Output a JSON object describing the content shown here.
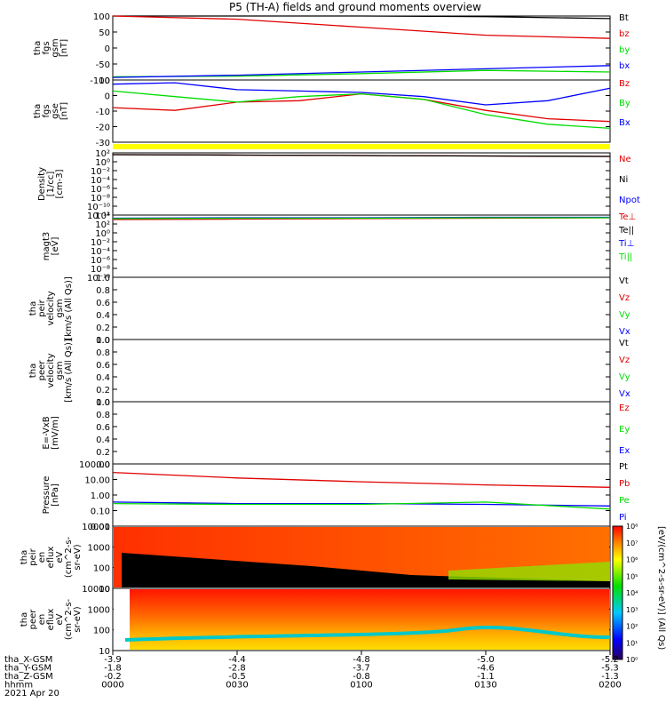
{
  "title": "P5 (TH-A) fields and ground moments overview",
  "colors": {
    "black": "#000000",
    "red": "#e00000",
    "green": "#00dd00",
    "blue": "#0000ff",
    "yellow": "#ffff00"
  },
  "panels": [
    {
      "id": "fgs_gsm",
      "ylabel": [
        "tha",
        "fgs",
        "gsm",
        "[nT]"
      ],
      "ticks": [
        "100",
        "50",
        "0",
        "-50",
        "-100"
      ],
      "legend": [
        {
          "label": "Bt",
          "color": "black"
        },
        {
          "label": "bz",
          "color": "red"
        },
        {
          "label": "by",
          "color": "green"
        },
        {
          "label": "bx",
          "color": "blue"
        }
      ]
    },
    {
      "id": "fgs_gse",
      "ylabel": [
        "tha",
        "fgs",
        "gse",
        "[nT]"
      ],
      "ticks": [
        "10",
        "0",
        "-10",
        "-20",
        "-30"
      ],
      "legend": [
        {
          "label": "Bz",
          "color": "red"
        },
        {
          "label": "By",
          "color": "green"
        },
        {
          "label": "Bx",
          "color": "blue"
        }
      ]
    },
    {
      "id": "density",
      "ylabel": [
        "Density",
        "[1/cc]",
        "[cm-3]"
      ],
      "ticks": [
        "10²",
        "10⁰",
        "10⁻²",
        "10⁻⁴",
        "10⁻⁶",
        "10⁻⁸",
        "10⁻¹⁰",
        "10⁻¹²"
      ],
      "legend": [
        {
          "label": "Ne",
          "color": "red"
        },
        {
          "label": "Ni",
          "color": "black"
        },
        {
          "label": "Npot",
          "color": "blue"
        }
      ]
    },
    {
      "id": "temperature",
      "ylabel": [
        "magt3",
        "[eV]"
      ],
      "ticks": [
        "10⁴",
        "10²",
        "10⁰",
        "10⁻²",
        "10⁻⁴",
        "10⁻⁶",
        "10⁻⁸",
        "10⁻¹⁰"
      ],
      "legend": [
        {
          "label": "Te⊥",
          "color": "red"
        },
        {
          "label": "Te||",
          "color": "black"
        },
        {
          "label": "Ti⊥",
          "color": "blue"
        },
        {
          "label": "Ti||",
          "color": "green"
        }
      ]
    },
    {
      "id": "peir_velocity",
      "ylabel": [
        "tha",
        "peir",
        "velocity",
        "gsm",
        "[km/s (All Qs)]"
      ],
      "ticks": [
        "1.0",
        "0.8",
        "0.6",
        "0.4",
        "0.2",
        "0.0"
      ],
      "legend": [
        {
          "label": "Vt",
          "color": "black"
        },
        {
          "label": "Vz",
          "color": "red"
        },
        {
          "label": "Vy",
          "color": "green"
        },
        {
          "label": "Vx",
          "color": "blue"
        }
      ]
    },
    {
      "id": "peer_velocity",
      "ylabel": [
        "tha",
        "peer",
        "velocity",
        "gsm",
        "[km/s (All Qs)]"
      ],
      "ticks": [
        "1.0",
        "0.8",
        "0.6",
        "0.4",
        "0.2",
        "0.0"
      ],
      "legend": [
        {
          "label": "Vt",
          "color": "black"
        },
        {
          "label": "Vz",
          "color": "red"
        },
        {
          "label": "Vy",
          "color": "green"
        },
        {
          "label": "Vx",
          "color": "blue"
        }
      ]
    },
    {
      "id": "efield",
      "ylabel": [
        "E=-VxB",
        "[mV/m]"
      ],
      "ticks": [
        "1.0",
        "0.8",
        "0.6",
        "0.4",
        "0.2",
        "0.0"
      ],
      "legend": [
        {
          "label": "Ez",
          "color": "red"
        },
        {
          "label": "Ey",
          "color": "green"
        },
        {
          "label": "Ex",
          "color": "blue"
        }
      ]
    },
    {
      "id": "pressure",
      "ylabel": [
        "Pressure",
        "[nPa]"
      ],
      "ticks": [
        "100.00",
        "10.00",
        "1.00",
        "0.10",
        "0.01"
      ],
      "legend": [
        {
          "label": "Pt",
          "color": "black"
        },
        {
          "label": "Pb",
          "color": "red"
        },
        {
          "label": "Pe",
          "color": "green"
        },
        {
          "label": "Pi",
          "color": "blue"
        }
      ]
    },
    {
      "id": "peir_spec",
      "ylabel": [
        "tha",
        "peir",
        "en",
        "eflux",
        "eV",
        "(cm^2-s-",
        "sr-eV)"
      ],
      "ticks": [
        "10000",
        "1000",
        "100",
        "10"
      ]
    },
    {
      "id": "peer_spec",
      "ylabel": [
        "tha",
        "peer",
        "en",
        "eflux",
        "eV",
        "(cm^2-s-",
        "sr-eV)"
      ],
      "ticks": [
        "10000",
        "1000",
        "100",
        "10"
      ]
    }
  ],
  "colorbar": {
    "ticks": [
      "10⁸",
      "10⁷",
      "10⁶",
      "10⁵",
      "10⁴",
      "10³",
      "10²",
      "10¹",
      "10⁰"
    ],
    "label": "[eV/(cm^2-s-sr-eV)] (All Qs)"
  },
  "xaxis": {
    "row_labels": [
      "tha_X-GSM",
      "tha_Y-GSM",
      "tha_Z-GSM",
      "hhmm",
      "2021 Apr 20"
    ],
    "columns": [
      [
        "-3.9",
        "-1.8",
        "-0.2",
        "0000"
      ],
      [
        "-4.4",
        "-2.8",
        "-0.5",
        "0030"
      ],
      [
        "-4.8",
        "-3.7",
        "-0.8",
        "0100"
      ],
      [
        "-5.0",
        "-4.6",
        "-1.1",
        "0130"
      ],
      [
        "-5.2",
        "-5.3",
        "-1.3",
        "0200"
      ]
    ]
  },
  "chart_data": [
    {
      "type": "line",
      "panel": "fgs_gsm",
      "x_hours": [
        0,
        0.5,
        1.0,
        1.5,
        2.0
      ],
      "ylim": [
        -100,
        100
      ],
      "series": [
        {
          "name": "Bt",
          "color": "black",
          "values": [
            105,
            104,
            102,
            98,
            92
          ]
        },
        {
          "name": "bz",
          "color": "red",
          "values": [
            105,
            90,
            65,
            40,
            30
          ]
        },
        {
          "name": "by",
          "color": "green",
          "values": [
            -90,
            -88,
            -80,
            -70,
            -75
          ]
        },
        {
          "name": "bx",
          "color": "blue",
          "values": [
            -92,
            -85,
            -75,
            -65,
            -55
          ]
        }
      ]
    },
    {
      "type": "line",
      "panel": "fgs_gse",
      "x_hours": [
        0,
        0.25,
        0.5,
        0.75,
        1.0,
        1.25,
        1.5,
        1.75,
        2.0
      ],
      "ylim": [
        -35,
        10
      ],
      "series": [
        {
          "name": "Bz",
          "color": "red",
          "values": [
            -10,
            -12,
            -6,
            -5,
            0,
            -4,
            -12,
            -18,
            -20
          ]
        },
        {
          "name": "By",
          "color": "green",
          "values": [
            2,
            -2,
            -6,
            -2,
            0,
            -4,
            -15,
            -22,
            -25
          ]
        },
        {
          "name": "Bx",
          "color": "blue",
          "values": [
            7,
            8,
            3,
            2,
            1,
            -2,
            -8,
            -5,
            4
          ]
        }
      ]
    },
    {
      "type": "line",
      "panel": "density",
      "x_hours": [
        0,
        0.5,
        1.0,
        1.5,
        2.0
      ],
      "ylim_log10": [
        -12,
        2
      ],
      "series": [
        {
          "name": "Ne",
          "color": "red",
          "values_log10": [
            1.6,
            1.5,
            1.4,
            1.3,
            1.2
          ]
        },
        {
          "name": "Ni",
          "color": "black",
          "values_log10": [
            1.6,
            1.5,
            1.4,
            1.3,
            1.2
          ]
        }
      ]
    },
    {
      "type": "line",
      "panel": "temperature",
      "x_hours": [
        0,
        0.5,
        1.0,
        1.5,
        2.0
      ],
      "ylim_log10": [
        -10,
        4
      ],
      "series": [
        {
          "name": "Te⊥",
          "color": "red",
          "values_log10": [
            3.0,
            3.1,
            3.2,
            3.3,
            3.4
          ]
        },
        {
          "name": "Ti⊥",
          "color": "blue",
          "values_log10": [
            3.3,
            3.4,
            3.4,
            3.5,
            3.5
          ]
        },
        {
          "name": "Ti||",
          "color": "green",
          "values_log10": [
            3.2,
            3.3,
            3.3,
            3.4,
            3.4
          ]
        }
      ]
    },
    {
      "type": "line",
      "panel": "pressure",
      "x_hours": [
        0,
        0.5,
        1.0,
        1.5,
        2.0
      ],
      "ylim_log10": [
        -2,
        2
      ],
      "series": [
        {
          "name": "Pb",
          "color": "red",
          "values_log10": [
            1.45,
            1.1,
            0.85,
            0.65,
            0.5
          ]
        },
        {
          "name": "Pi",
          "color": "blue",
          "values_log10": [
            -0.45,
            -0.55,
            -0.55,
            -0.6,
            -0.7
          ]
        },
        {
          "name": "Pe",
          "color": "green",
          "values_log10": [
            -0.55,
            -0.6,
            -0.6,
            -0.45,
            -0.9
          ]
        }
      ]
    },
    {
      "type": "heatmap",
      "panel": "peir_spec",
      "ylim": [
        10,
        10000
      ]
    },
    {
      "type": "heatmap",
      "panel": "peer_spec",
      "ylim": [
        10,
        10000
      ]
    }
  ]
}
